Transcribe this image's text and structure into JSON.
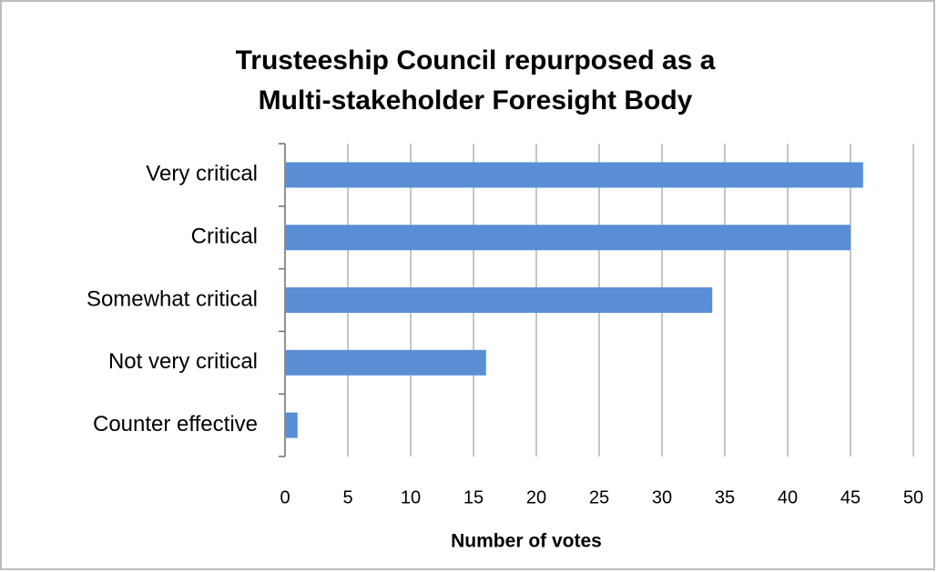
{
  "chart_data": {
    "type": "hbar",
    "title": [
      "Trusteeship Council repurposed as a",
      "Multi-stakeholder Foresight Body"
    ],
    "categories": [
      "Very critical",
      "Critical",
      "Somewhat critical",
      "Not very critical",
      "Counter effective"
    ],
    "values": [
      46,
      45,
      34,
      16,
      1
    ],
    "color": "#5a8fd6",
    "xlabel": "Number of votes",
    "xlim": [
      0,
      50
    ],
    "xticks": [
      0,
      5,
      10,
      15,
      20,
      25,
      30,
      35,
      40,
      45,
      50
    ],
    "grid": true
  }
}
